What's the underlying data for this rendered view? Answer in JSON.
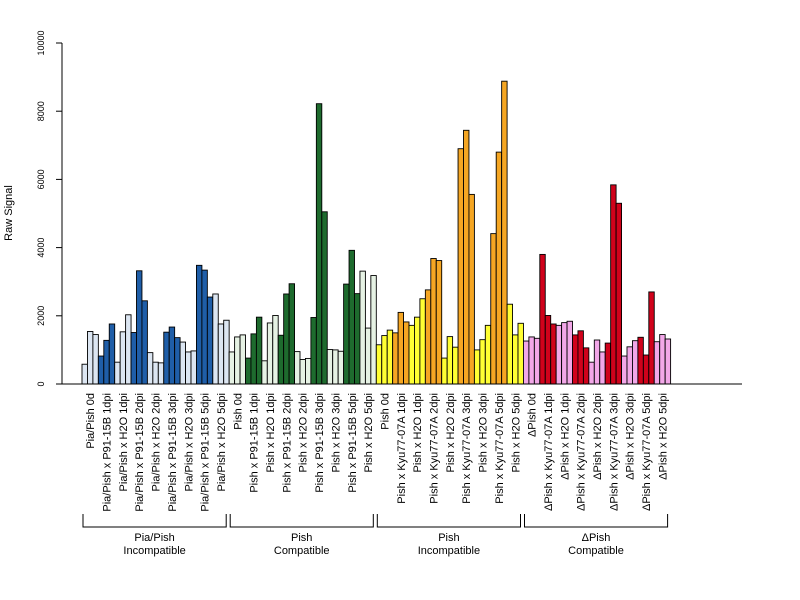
{
  "chart_data": {
    "type": "bar",
    "title": "",
    "xlabel": "",
    "ylabel": "Raw Signal",
    "ylim": [
      0,
      10000
    ],
    "yticks": [
      0,
      2000,
      4000,
      6000,
      8000,
      10000
    ],
    "grid": false,
    "legend": "none",
    "groups": [
      {
        "name_line1": "Pia/Pish",
        "name_line2": "Incompatible",
        "categories": [
          {
            "label": "Pia/Pish 0d",
            "color": "#dce6f2",
            "values": [
              580,
              1540,
              1450
            ]
          },
          {
            "label": "Pia/Pish x P91-15B 1dpi",
            "color": "#1f5ea8",
            "values": [
              820,
              1280,
              1760
            ]
          },
          {
            "label": "Pia/Pish x H2O 1dpi",
            "color": "#dce6f2",
            "values": [
              640,
              1530,
              2030
            ]
          },
          {
            "label": "Pia/Pish x P91-15B 2dpi",
            "color": "#1f5ea8",
            "values": [
              1510,
              3320,
              2440
            ]
          },
          {
            "label": "Pia/Pish x H2O 2dpi",
            "color": "#dce6f2",
            "values": [
              920,
              640,
              620
            ]
          },
          {
            "label": "Pia/Pish x P91-15B 3dpi",
            "color": "#1f5ea8",
            "values": [
              1520,
              1670,
              1360
            ]
          },
          {
            "label": "Pia/Pish x H2O 3dpi",
            "color": "#dce6f2",
            "values": [
              1230,
              940,
              970
            ]
          },
          {
            "label": "Pia/Pish x P91-15B 5dpi",
            "color": "#1f5ea8",
            "values": [
              3480,
              3340,
              2550
            ]
          },
          {
            "label": "Pia/Pish x H2O 5dpi",
            "color": "#dce6f2",
            "values": [
              2640,
              1760,
              1870
            ]
          }
        ]
      },
      {
        "name_line1": "Pish",
        "name_line2": "Compatible",
        "categories": [
          {
            "label": "Pish 0d",
            "color": "#e6f2e4",
            "values": [
              940,
              1380,
              1440
            ]
          },
          {
            "label": "Pish x P91-15B 1dpi",
            "color": "#1e6b2e",
            "values": [
              760,
              1470,
              1960
            ]
          },
          {
            "label": "Pish x H2O 1dpi",
            "color": "#e6f2e4",
            "values": [
              680,
              1790,
              2010
            ]
          },
          {
            "label": "Pish x P91-15B 2dpi",
            "color": "#1e6b2e",
            "values": [
              1430,
              2640,
              2940
            ]
          },
          {
            "label": "Pish x H2O 2dpi",
            "color": "#e6f2e4",
            "values": [
              950,
              720,
              750
            ]
          },
          {
            "label": "Pish x P91-15B 3dpi",
            "color": "#1e6b2e",
            "values": [
              1950,
              8220,
              5050
            ]
          },
          {
            "label": "Pish x H2O 3dpi",
            "color": "#e6f2e4",
            "values": [
              1010,
              1000,
              960
            ]
          },
          {
            "label": "Pish x P91-15B 5dpi",
            "color": "#1e6b2e",
            "values": [
              2930,
              3920,
              2650
            ]
          },
          {
            "label": "Pish x H2O 5dpi",
            "color": "#e6f2e4",
            "values": [
              3310,
              1640,
              3180
            ]
          }
        ]
      },
      {
        "name_line1": "Pish",
        "name_line2": "Incompatible",
        "categories": [
          {
            "label": "Pish 0d",
            "color": "#ffff33",
            "values": [
              1150,
              1420,
              1580
            ]
          },
          {
            "label": "Pish x Kyu77-07A 1dpi",
            "color": "#f5a623",
            "values": [
              1500,
              2100,
              1820
            ]
          },
          {
            "label": "Pish x H2O 1dpi",
            "color": "#ffff33",
            "values": [
              1720,
              1960,
              2500
            ]
          },
          {
            "label": "Pish x Kyu77-07A 2dpi",
            "color": "#f5a623",
            "values": [
              2760,
              3680,
              3620
            ]
          },
          {
            "label": "Pish x H2O 2dpi",
            "color": "#ffff33",
            "values": [
              760,
              1390,
              1080
            ]
          },
          {
            "label": "Pish x Kyu77-07A 3dpi",
            "color": "#f5a623",
            "values": [
              6900,
              7440,
              5560
            ]
          },
          {
            "label": "Pish x H2O 3dpi",
            "color": "#ffff33",
            "values": [
              1000,
              1300,
              1720
            ]
          },
          {
            "label": "Pish x Kyu77-07A 5dpi",
            "color": "#f5a623",
            "values": [
              4410,
              6800,
              8880
            ]
          },
          {
            "label": "Pish x H2O 5dpi",
            "color": "#ffff33",
            "values": [
              2340,
              1440,
              1780
            ]
          }
        ]
      },
      {
        "name_line1": "ΔPish",
        "name_line2": "Compatible",
        "categories": [
          {
            "label": "ΔPish 0d",
            "color": "#f2a7e8",
            "values": [
              1260,
              1380,
              1340
            ]
          },
          {
            "label": "ΔPish x Kyu77-07A 1dpi",
            "color": "#d0021b",
            "values": [
              3800,
              2010,
              1760
            ]
          },
          {
            "label": "ΔPish x H2O 1dpi",
            "color": "#f2a7e8",
            "values": [
              1720,
              1800,
              1840
            ]
          },
          {
            "label": "ΔPish x Kyu77-07A 2dpi",
            "color": "#d0021b",
            "values": [
              1440,
              1560,
              1060
            ]
          },
          {
            "label": "ΔPish x H2O 2dpi",
            "color": "#f2a7e8",
            "values": [
              640,
              1290,
              940
            ]
          },
          {
            "label": "ΔPish x Kyu77-07A 3dpi",
            "color": "#d0021b",
            "values": [
              1200,
              5840,
              5300
            ]
          },
          {
            "label": "ΔPish x H2O 3dpi",
            "color": "#f2a7e8",
            "values": [
              820,
              1090,
              1270
            ]
          },
          {
            "label": "ΔPish x Kyu77-07A 5dpi",
            "color": "#d0021b",
            "values": [
              1370,
              850,
              2700
            ]
          },
          {
            "label": "ΔPish x H2O 5dpi",
            "color": "#f2a7e8",
            "values": [
              1240,
              1450,
              1320
            ]
          }
        ]
      }
    ]
  }
}
